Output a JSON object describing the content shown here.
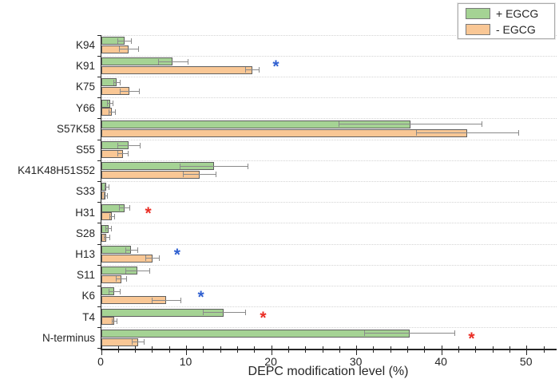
{
  "legend": {
    "entries": [
      {
        "label": "+ EGCG",
        "color": "#a5d394"
      },
      {
        "label": "- EGCG",
        "color": "#f9c795"
      }
    ]
  },
  "chart_data": {
    "type": "bar",
    "orientation": "horizontal",
    "title": "",
    "xlabel": "DEPC modification level (%)",
    "ylabel": "",
    "xlim": [
      0,
      53.5
    ],
    "x_major_ticks": [
      0,
      10,
      20,
      30,
      40,
      50
    ],
    "x_minor_tick_step": 2,
    "grid": "dashed horizontal lines at category boundaries",
    "legend_position": "top-right outside plot",
    "categories": [
      "K94",
      "K91",
      "K75",
      "Y66",
      "S57K58",
      "S55",
      "K41K48H51S52",
      "S33",
      "H31",
      "S28",
      "H13",
      "S11",
      "K6",
      "T4",
      "N-terminus"
    ],
    "series": [
      {
        "name": "+ EGCG",
        "color": "#a5d394",
        "values": [
          2.7,
          8.4,
          1.8,
          1.0,
          36.3,
          3.2,
          13.2,
          0.6,
          2.7,
          0.8,
          3.5,
          4.2,
          1.5,
          14.4,
          36.2
        ],
        "errors": [
          0.8,
          1.7,
          0.4,
          0.3,
          8.4,
          1.3,
          4.0,
          0.2,
          0.6,
          0.3,
          0.7,
          1.4,
          0.7,
          2.5,
          5.3
        ]
      },
      {
        "name": "- EGCG",
        "color": "#f9c795",
        "values": [
          3.2,
          17.7,
          3.3,
          1.2,
          43.0,
          2.5,
          11.5,
          0.5,
          1.2,
          0.6,
          6.0,
          2.3,
          7.6,
          1.5,
          4.3
        ],
        "errors": [
          1.1,
          0.8,
          1.1,
          0.4,
          6.0,
          0.6,
          1.9,
          0.2,
          0.3,
          0.3,
          0.8,
          0.6,
          1.7,
          0.3,
          0.7
        ]
      }
    ],
    "significance_markers": [
      {
        "category": "K91",
        "x": 20.5,
        "color_key": "blue",
        "symbol": "*"
      },
      {
        "category": "H31",
        "x": 5.5,
        "color_key": "red",
        "symbol": "*"
      },
      {
        "category": "H13",
        "x": 8.9,
        "color_key": "blue",
        "symbol": "*"
      },
      {
        "category": "K6",
        "x": 11.7,
        "color_key": "blue",
        "symbol": "*"
      },
      {
        "category": "T4",
        "x": 19.0,
        "color_key": "red",
        "symbol": "*"
      },
      {
        "category": "N-terminus",
        "x": 43.5,
        "color_key": "red",
        "symbol": "*"
      }
    ],
    "colors": {
      "bar_edge": "#5f5f5f",
      "error_bar": "#8a8a8a",
      "grid": "#d4d4d4",
      "axis": "#262626",
      "star_blue": "#3060d0",
      "star_red": "#ea2e25"
    }
  }
}
